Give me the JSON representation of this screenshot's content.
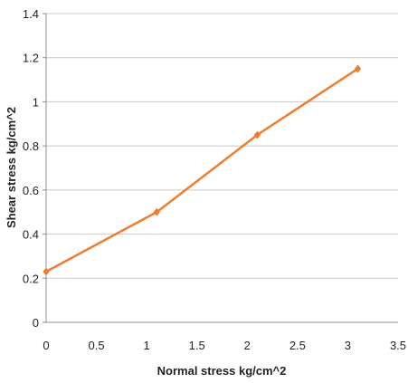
{
  "chart_data": {
    "type": "line",
    "title": "",
    "xlabel": "Normal stress kg/cm^2",
    "ylabel": "Shear stress kg/cm^2",
    "xlim": [
      0,
      3.5
    ],
    "ylim": [
      0,
      1.4
    ],
    "xticks": [
      0,
      0.5,
      1,
      1.5,
      2,
      2.5,
      3,
      3.5
    ],
    "yticks": [
      0,
      0.2,
      0.4,
      0.6,
      0.8,
      1,
      1.2,
      1.4
    ],
    "xtick_labels": [
      "0",
      "0.5",
      "1",
      "1.5",
      "2",
      "2.5",
      "3",
      "3.5"
    ],
    "ytick_labels": [
      "0",
      "0.2",
      "0.4",
      "0.6",
      "0.8",
      "1",
      "1.2",
      "1.4"
    ],
    "grid": "horizontal",
    "legend": "none",
    "series": [
      {
        "x": [
          0,
          1.1,
          2.1,
          3.1
        ],
        "y": [
          0.23,
          0.5,
          0.85,
          1.15
        ],
        "color": "#ED7D31",
        "marker": "diamond"
      }
    ],
    "colors": {
      "gridline": "#c8c8c8",
      "axis": "#8c8c8c",
      "text": "#222222"
    }
  }
}
